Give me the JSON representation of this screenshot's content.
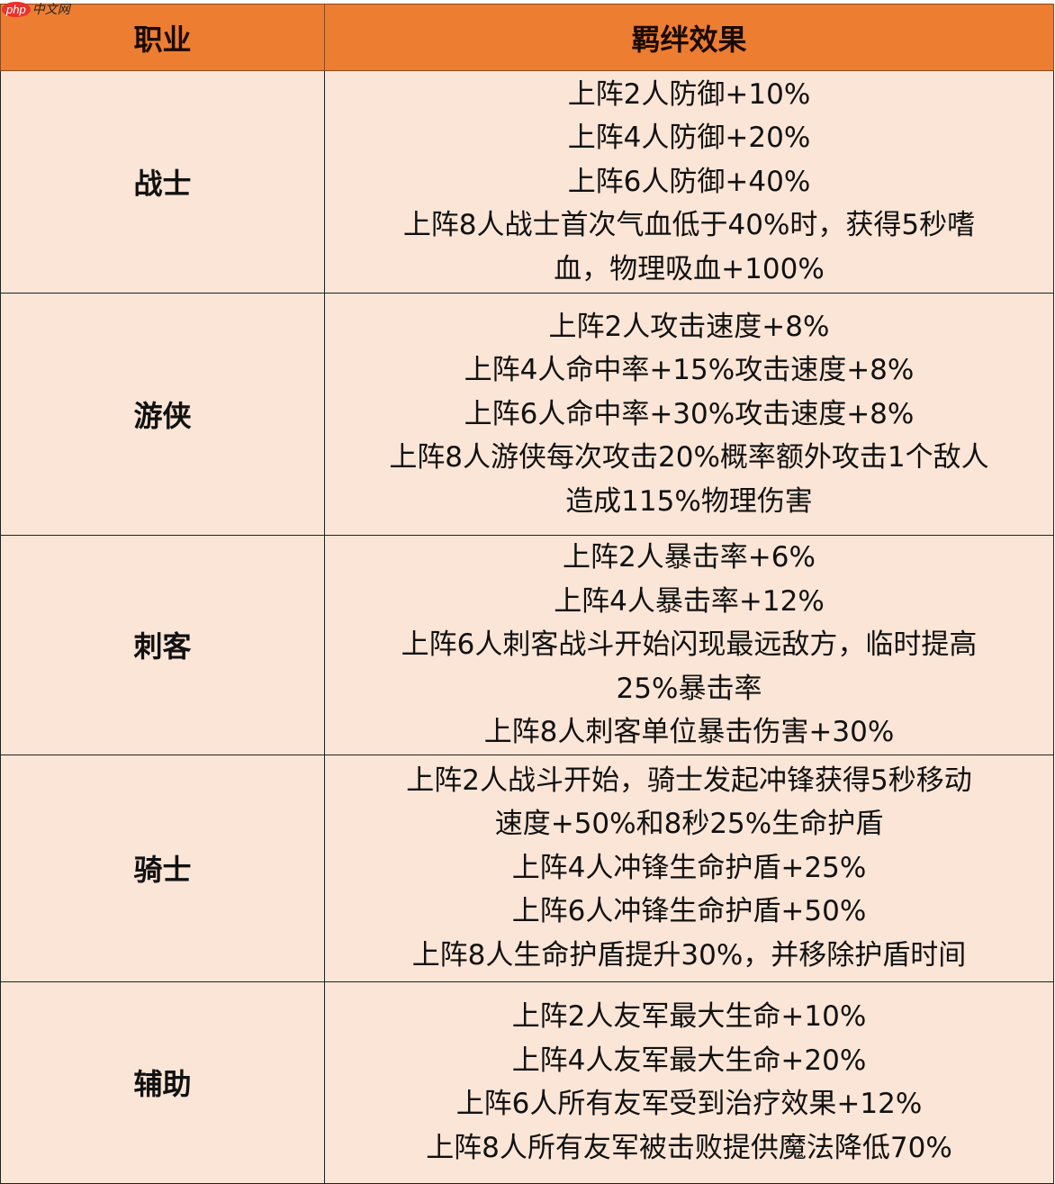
{
  "watermark": {
    "brand": "php",
    "text": "中文网"
  },
  "colors": {
    "header": "#ED7D31",
    "body": "#FBE5D6"
  },
  "table": {
    "headers": [
      "职业",
      "羁绊效果"
    ],
    "rows": [
      {
        "class": "战士",
        "effects": [
          "上阵2人防御+10%",
          "上阵4人防御+20%",
          "上阵6人防御+40%",
          "上阵8人战士首次气血低于40%时，获得5秒嗜",
          "血，物理吸血+100%"
        ]
      },
      {
        "class": "游侠",
        "effects": [
          "上阵2人攻击速度+8%",
          "上阵4人命中率+15%攻击速度+8%",
          "上阵6人命中率+30%攻击速度+8%",
          "上阵8人游侠每次攻击20%概率额外攻击1个敌人",
          "造成115%物理伤害"
        ]
      },
      {
        "class": "刺客",
        "effects": [
          "上阵2人暴击率+6%",
          "上阵4人暴击率+12%",
          "上阵6人刺客战斗开始闪现最远敌方，临时提高",
          "25%暴击率",
          "上阵8人刺客单位暴击伤害+30%"
        ]
      },
      {
        "class": "骑士",
        "effects": [
          "上阵2人战斗开始，骑士发起冲锋获得5秒移动",
          "速度+50%和8秒25%生命护盾",
          "上阵4人冲锋生命护盾+25%",
          "上阵6人冲锋生命护盾+50%",
          "上阵8人生命护盾提升30%，并移除护盾时间"
        ]
      },
      {
        "class": "辅助",
        "effects": [
          "上阵2人友军最大生命+10%",
          "上阵4人友军最大生命+20%",
          "上阵6人所有友军受到治疗效果+12%",
          "上阵8人所有友军被击败提供魔法降低70%"
        ]
      }
    ]
  }
}
